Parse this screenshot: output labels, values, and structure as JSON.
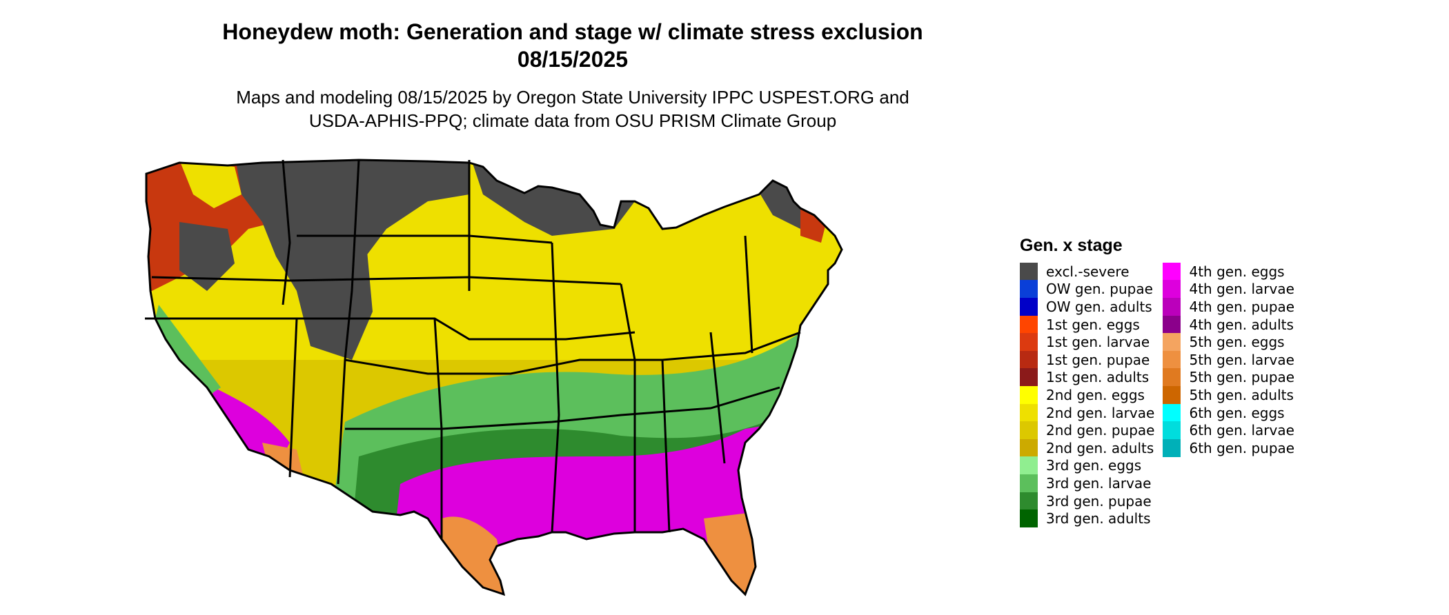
{
  "header": {
    "title_line1": "Honeydew moth: Generation and stage w/ climate stress exclusion",
    "title_line2": "08/15/2025",
    "subtitle_line1": "Maps and modeling 08/15/2025 by Oregon State University IPPC USPEST.ORG and",
    "subtitle_line2": "USDA-APHIS-PPQ; climate data from OSU PRISM Climate Group"
  },
  "legend": {
    "title": "Gen. x stage",
    "columns": [
      [
        {
          "label": "excl.-severe",
          "color": "#4a4a4a"
        },
        {
          "label": "OW gen. pupae",
          "color": "#0a3fd8"
        },
        {
          "label": "OW gen. adults",
          "color": "#0000c8"
        },
        {
          "label": "1st gen. eggs",
          "color": "#ff4500"
        },
        {
          "label": "1st gen. larvae",
          "color": "#dc3a10"
        },
        {
          "label": "1st gen. pupae",
          "color": "#b82a12"
        },
        {
          "label": "1st gen. adults",
          "color": "#8b1a1a"
        },
        {
          "label": "2nd gen. eggs",
          "color": "#ffff00"
        },
        {
          "label": "2nd gen. larvae",
          "color": "#eee000"
        },
        {
          "label": "2nd gen. pupae",
          "color": "#dcc800"
        },
        {
          "label": "2nd gen. adults",
          "color": "#ccaa00"
        },
        {
          "label": "3rd gen. eggs",
          "color": "#90ee90"
        },
        {
          "label": "3rd gen. larvae",
          "color": "#5cbf5c"
        },
        {
          "label": "3rd gen. pupae",
          "color": "#2e8b2e"
        },
        {
          "label": "3rd gen. adults",
          "color": "#006400"
        }
      ],
      [
        {
          "label": "4th gen. eggs",
          "color": "#ff00ff"
        },
        {
          "label": "4th gen. larvae",
          "color": "#dd00dd"
        },
        {
          "label": "4th gen. pupae",
          "color": "#bb00bb"
        },
        {
          "label": "4th gen. adults",
          "color": "#8b008b"
        },
        {
          "label": "5th gen. eggs",
          "color": "#f4a460"
        },
        {
          "label": "5th gen. larvae",
          "color": "#ee9040"
        },
        {
          "label": "5th gen. pupae",
          "color": "#e07a20"
        },
        {
          "label": "5th gen. adults",
          "color": "#cd6600"
        },
        {
          "label": "6th gen. eggs",
          "color": "#00ffff"
        },
        {
          "label": "6th gen. larvae",
          "color": "#00dddd"
        },
        {
          "label": "6th gen. pupae",
          "color": "#00b0b8"
        }
      ]
    ]
  },
  "map": {
    "colors": {
      "excluded": "#4a4a4a",
      "first_gen": "#c8380f",
      "second_gen_yellow": "#eee000",
      "second_gen_olive": "#dcc800",
      "third_gen_light": "#5cbf5c",
      "third_gen_dark": "#2e8b2e",
      "fourth_gen": "#dd00dd",
      "fifth_gen": "#ee9040",
      "sixth_gen": "#00dddd",
      "border": "#000000"
    }
  }
}
